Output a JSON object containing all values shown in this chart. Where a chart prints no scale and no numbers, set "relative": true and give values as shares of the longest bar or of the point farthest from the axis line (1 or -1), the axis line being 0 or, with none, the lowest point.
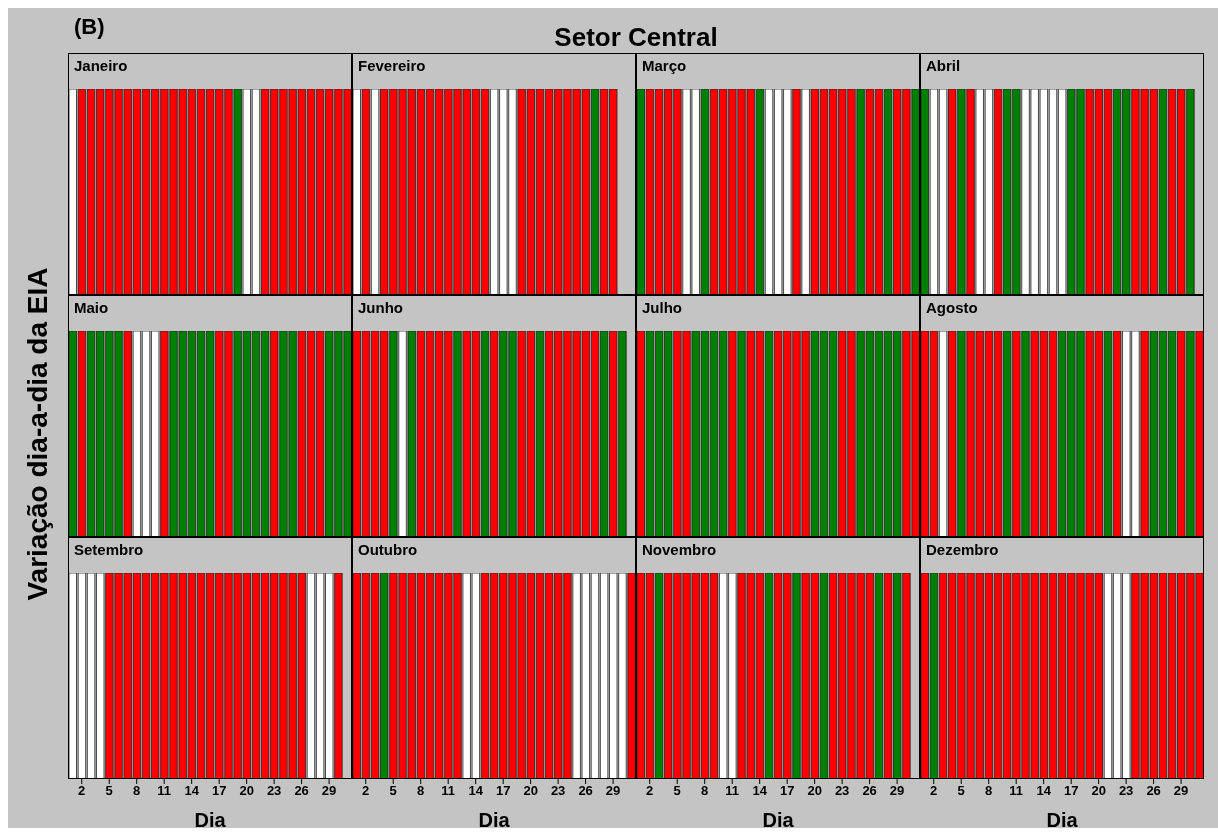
{
  "chart_data": [
    {
      "type": "bar",
      "title": "Janeiro",
      "annotations": [
        "(B)",
        "Setor Central"
      ],
      "relative": true,
      "x": [
        1,
        2,
        3,
        4,
        5,
        6,
        7,
        8,
        9,
        10,
        11,
        12,
        13,
        14,
        15,
        16,
        17,
        18,
        19,
        20,
        21,
        22,
        23,
        24,
        25,
        26,
        27,
        28,
        29,
        30,
        31
      ],
      "values": [
        1,
        1,
        1,
        1,
        1,
        1,
        1,
        1,
        1,
        1,
        1,
        1,
        1,
        1,
        1,
        1,
        1,
        1,
        1,
        1,
        1,
        1,
        1,
        1,
        1,
        1,
        1,
        1,
        1,
        1,
        1
      ],
      "colors": [
        "#ffffff",
        "#ff0000",
        "#ff0000",
        "#ff0000",
        "#ff0000",
        "#ff0000",
        "#ff0000",
        "#ff0000",
        "#ff0000",
        "#ff0000",
        "#ff0000",
        "#ff0000",
        "#ff0000",
        "#ff0000",
        "#ff0000",
        "#ff0000",
        "#ff0000",
        "#ff0000",
        "#008000",
        "#ffffff",
        "#ffffff",
        "#ff0000",
        "#ff0000",
        "#ff0000",
        "#ff0000",
        "#ff0000",
        "#ff0000",
        "#ff0000",
        "#ff0000",
        "#ff0000",
        "#ff0000"
      ],
      "xlim": [
        0.5,
        31.5
      ],
      "tick_labels": false
    },
    {
      "type": "bar",
      "title": "Fevereiro",
      "relative": true,
      "x": [
        1,
        2,
        3,
        4,
        5,
        6,
        7,
        8,
        9,
        10,
        11,
        12,
        13,
        14,
        15,
        16,
        17,
        18,
        19,
        20,
        21,
        22,
        23,
        24,
        25,
        26,
        27,
        28,
        29
      ],
      "values": [
        1,
        1,
        1,
        1,
        1,
        1,
        1,
        1,
        1,
        1,
        1,
        1,
        1,
        1,
        1,
        1,
        1,
        1,
        1,
        1,
        1,
        1,
        1,
        1,
        1,
        1,
        1,
        1,
        1
      ],
      "colors": [
        "#ffffff",
        "#ff0000",
        "#ffffff",
        "#ff0000",
        "#ff0000",
        "#ff0000",
        "#ff0000",
        "#ff0000",
        "#ff0000",
        "#ff0000",
        "#ff0000",
        "#ff0000",
        "#ff0000",
        "#ff0000",
        "#ff0000",
        "#ffffff",
        "#ffffff",
        "#ffffff",
        "#ff0000",
        "#ff0000",
        "#ff0000",
        "#ff0000",
        "#ff0000",
        "#ff0000",
        "#ff0000",
        "#ff0000",
        "#008000",
        "#ff0000",
        "#ff0000"
      ],
      "xlim": [
        0.5,
        31.5
      ],
      "tick_labels": false
    },
    {
      "type": "bar",
      "title": "Março",
      "relative": true,
      "x": [
        1,
        2,
        3,
        4,
        5,
        6,
        7,
        8,
        9,
        10,
        11,
        12,
        13,
        14,
        15,
        16,
        17,
        18,
        19,
        20,
        21,
        22,
        23,
        24,
        25,
        26,
        27,
        28,
        29,
        30,
        31
      ],
      "values": [
        1,
        1,
        1,
        1,
        1,
        1,
        1,
        1,
        1,
        1,
        1,
        1,
        1,
        1,
        1,
        1,
        1,
        1,
        1,
        1,
        1,
        1,
        1,
        1,
        1,
        1,
        1,
        1,
        1,
        1,
        1
      ],
      "colors": [
        "#008000",
        "#ff0000",
        "#ff0000",
        "#ff0000",
        "#ff0000",
        "#ffffff",
        "#ffffff",
        "#008000",
        "#ff0000",
        "#ff0000",
        "#ff0000",
        "#ff0000",
        "#ff0000",
        "#008000",
        "#ffffff",
        "#ffffff",
        "#ffffff",
        "#ff0000",
        "#ffffff",
        "#ff0000",
        "#ff0000",
        "#ff0000",
        "#ff0000",
        "#ff0000",
        "#008000",
        "#ff0000",
        "#ff0000",
        "#008000",
        "#ff0000",
        "#ff0000",
        "#008000"
      ],
      "xlim": [
        0.5,
        31.5
      ],
      "tick_labels": false
    },
    {
      "type": "bar",
      "title": "Abril",
      "relative": true,
      "x": [
        1,
        2,
        3,
        4,
        5,
        6,
        7,
        8,
        9,
        10,
        11,
        12,
        13,
        14,
        15,
        16,
        17,
        18,
        19,
        20,
        21,
        22,
        23,
        24,
        25,
        26,
        27,
        28,
        29,
        30
      ],
      "values": [
        1,
        1,
        1,
        1,
        1,
        1,
        1,
        1,
        1,
        1,
        1,
        1,
        1,
        1,
        1,
        1,
        1,
        1,
        1,
        1,
        1,
        1,
        1,
        1,
        1,
        1,
        1,
        1,
        1,
        1
      ],
      "colors": [
        "#008000",
        "#ffffff",
        "#ffffff",
        "#ff0000",
        "#008000",
        "#ff0000",
        "#ffffff",
        "#ffffff",
        "#ff0000",
        "#008000",
        "#008000",
        "#ffffff",
        "#ffffff",
        "#ffffff",
        "#ffffff",
        "#ffffff",
        "#008000",
        "#008000",
        "#ff0000",
        "#ff0000",
        "#ff0000",
        "#008000",
        "#008000",
        "#ff0000",
        "#ff0000",
        "#ff0000",
        "#008000",
        "#ff0000",
        "#ff0000",
        "#008000"
      ],
      "xlim": [
        0.5,
        31.5
      ],
      "tick_labels": false
    },
    {
      "type": "bar",
      "title": "Maio",
      "ylabel": "Variação dia-a-dia da EIA",
      "relative": true,
      "x": [
        1,
        2,
        3,
        4,
        5,
        6,
        7,
        8,
        9,
        10,
        11,
        12,
        13,
        14,
        15,
        16,
        17,
        18,
        19,
        20,
        21,
        22,
        23,
        24,
        25,
        26,
        27,
        28,
        29,
        30,
        31
      ],
      "values": [
        1,
        1,
        1,
        1,
        1,
        1,
        1,
        1,
        1,
        1,
        1,
        1,
        1,
        1,
        1,
        1,
        1,
        1,
        1,
        1,
        1,
        1,
        1,
        1,
        1,
        1,
        1,
        1,
        1,
        1,
        1
      ],
      "colors": [
        "#008000",
        "#ff0000",
        "#008000",
        "#008000",
        "#008000",
        "#008000",
        "#ff0000",
        "#ffffff",
        "#ffffff",
        "#ffffff",
        "#ff0000",
        "#008000",
        "#008000",
        "#008000",
        "#008000",
        "#008000",
        "#ff0000",
        "#ff0000",
        "#008000",
        "#008000",
        "#008000",
        "#008000",
        "#ff0000",
        "#008000",
        "#008000",
        "#ff0000",
        "#ff0000",
        "#ff0000",
        "#008000",
        "#008000",
        "#008000"
      ],
      "xlim": [
        0.5,
        31.5
      ],
      "tick_labels": false
    },
    {
      "type": "bar",
      "title": "Junho",
      "relative": true,
      "x": [
        1,
        2,
        3,
        4,
        5,
        6,
        7,
        8,
        9,
        10,
        11,
        12,
        13,
        14,
        15,
        16,
        17,
        18,
        19,
        20,
        21,
        22,
        23,
        24,
        25,
        26,
        27,
        28,
        29,
        30
      ],
      "values": [
        1,
        1,
        1,
        1,
        1,
        1,
        1,
        1,
        1,
        1,
        1,
        1,
        1,
        1,
        1,
        1,
        1,
        1,
        1,
        1,
        1,
        1,
        1,
        1,
        1,
        1,
        1,
        1,
        1,
        1
      ],
      "colors": [
        "#ff0000",
        "#ff0000",
        "#ff0000",
        "#ff0000",
        "#008000",
        "#ffffff",
        "#008000",
        "#ff0000",
        "#ff0000",
        "#ff0000",
        "#ff0000",
        "#008000",
        "#ff0000",
        "#ff0000",
        "#008000",
        "#ff0000",
        "#008000",
        "#008000",
        "#ff0000",
        "#ff0000",
        "#008000",
        "#ff0000",
        "#ff0000",
        "#ff0000",
        "#ff0000",
        "#ff0000",
        "#ff0000",
        "#008000",
        "#ff0000",
        "#008000"
      ],
      "xlim": [
        0.5,
        31.5
      ],
      "tick_labels": false
    },
    {
      "type": "bar",
      "title": "Julho",
      "relative": true,
      "x": [
        1,
        2,
        3,
        4,
        5,
        6,
        7,
        8,
        9,
        10,
        11,
        12,
        13,
        14,
        15,
        16,
        17,
        18,
        19,
        20,
        21,
        22,
        23,
        24,
        25,
        26,
        27,
        28,
        29,
        30,
        31
      ],
      "values": [
        1,
        1,
        1,
        1,
        1,
        1,
        1,
        1,
        1,
        1,
        1,
        1,
        1,
        1,
        1,
        1,
        1,
        1,
        1,
        1,
        1,
        1,
        1,
        1,
        1,
        1,
        1,
        1,
        1,
        1,
        1
      ],
      "colors": [
        "#ff0000",
        "#008000",
        "#008000",
        "#008000",
        "#ff0000",
        "#ff0000",
        "#008000",
        "#008000",
        "#008000",
        "#008000",
        "#ff0000",
        "#008000",
        "#ff0000",
        "#ff0000",
        "#008000",
        "#ff0000",
        "#ff0000",
        "#ff0000",
        "#ff0000",
        "#008000",
        "#008000",
        "#008000",
        "#ff0000",
        "#ff0000",
        "#008000",
        "#008000",
        "#008000",
        "#008000",
        "#008000",
        "#ff0000",
        "#ff0000"
      ],
      "xlim": [
        0.5,
        31.5
      ],
      "tick_labels": false
    },
    {
      "type": "bar",
      "title": "Agosto",
      "relative": true,
      "x": [
        1,
        2,
        3,
        4,
        5,
        6,
        7,
        8,
        9,
        10,
        11,
        12,
        13,
        14,
        15,
        16,
        17,
        18,
        19,
        20,
        21,
        22,
        23,
        24,
        25,
        26,
        27,
        28,
        29,
        30,
        31
      ],
      "values": [
        1,
        1,
        1,
        1,
        1,
        1,
        1,
        1,
        1,
        1,
        1,
        1,
        1,
        1,
        1,
        1,
        1,
        1,
        1,
        1,
        1,
        1,
        1,
        1,
        1,
        1,
        1,
        1,
        1,
        1,
        1
      ],
      "colors": [
        "#ff0000",
        "#ff0000",
        "#ffffff",
        "#ff0000",
        "#008000",
        "#ff0000",
        "#ff0000",
        "#ff0000",
        "#ff0000",
        "#008000",
        "#ff0000",
        "#008000",
        "#ff0000",
        "#ff0000",
        "#ff0000",
        "#008000",
        "#008000",
        "#008000",
        "#ff0000",
        "#ff0000",
        "#008000",
        "#ff0000",
        "#ffffff",
        "#ffffff",
        "#ff0000",
        "#008000",
        "#008000",
        "#008000",
        "#ff0000",
        "#008000",
        "#ff0000"
      ],
      "xlim": [
        0.5,
        31.5
      ],
      "tick_labels": false
    },
    {
      "type": "bar",
      "title": "Setembro",
      "xlabel": "Dia",
      "relative": true,
      "x": [
        1,
        2,
        3,
        4,
        5,
        6,
        7,
        8,
        9,
        10,
        11,
        12,
        13,
        14,
        15,
        16,
        17,
        18,
        19,
        20,
        21,
        22,
        23,
        24,
        25,
        26,
        27,
        28,
        29,
        30
      ],
      "values": [
        1,
        1,
        1,
        1,
        1,
        1,
        1,
        1,
        1,
        1,
        1,
        1,
        1,
        1,
        1,
        1,
        1,
        1,
        1,
        1,
        1,
        1,
        1,
        1,
        1,
        1,
        1,
        1,
        1,
        1
      ],
      "colors": [
        "#ffffff",
        "#ffffff",
        "#ffffff",
        "#ffffff",
        "#ff0000",
        "#ff0000",
        "#ff0000",
        "#ff0000",
        "#ff0000",
        "#ff0000",
        "#ff0000",
        "#ff0000",
        "#ff0000",
        "#ff0000",
        "#ff0000",
        "#ff0000",
        "#ff0000",
        "#ff0000",
        "#ff0000",
        "#ff0000",
        "#ff0000",
        "#ff0000",
        "#ff0000",
        "#ff0000",
        "#ff0000",
        "#ff0000",
        "#ffffff",
        "#ffffff",
        "#ffffff",
        "#ff0000"
      ],
      "xlim": [
        0.5,
        31.5
      ],
      "xticks": [
        2,
        5,
        8,
        11,
        14,
        17,
        20,
        23,
        26,
        29
      ],
      "tick_labels": "x"
    },
    {
      "type": "bar",
      "title": "Outubro",
      "xlabel": "Dia",
      "relative": true,
      "x": [
        1,
        2,
        3,
        4,
        5,
        6,
        7,
        8,
        9,
        10,
        11,
        12,
        13,
        14,
        15,
        16,
        17,
        18,
        19,
        20,
        21,
        22,
        23,
        24,
        25,
        26,
        27,
        28,
        29,
        30,
        31
      ],
      "values": [
        1,
        1,
        1,
        1,
        1,
        1,
        1,
        1,
        1,
        1,
        1,
        1,
        1,
        1,
        1,
        1,
        1,
        1,
        1,
        1,
        1,
        1,
        1,
        1,
        1,
        1,
        1,
        1,
        1,
        1,
        1
      ],
      "colors": [
        "#ff0000",
        "#ff0000",
        "#ff0000",
        "#008000",
        "#ff0000",
        "#ff0000",
        "#ff0000",
        "#ff0000",
        "#ff0000",
        "#ff0000",
        "#ff0000",
        "#ff0000",
        "#ffffff",
        "#ffffff",
        "#ff0000",
        "#ff0000",
        "#ff0000",
        "#ff0000",
        "#ff0000",
        "#ff0000",
        "#ff0000",
        "#ff0000",
        "#ff0000",
        "#ff0000",
        "#ffffff",
        "#ffffff",
        "#ffffff",
        "#ffffff",
        "#ffffff",
        "#ffffff",
        "#ff0000"
      ],
      "xlim": [
        0.5,
        31.5
      ],
      "xticks": [
        2,
        5,
        8,
        11,
        14,
        17,
        20,
        23,
        26,
        29
      ],
      "tick_labels": "x"
    },
    {
      "type": "bar",
      "title": "Novembro",
      "xlabel": "Dia",
      "relative": true,
      "x": [
        1,
        2,
        3,
        4,
        5,
        6,
        7,
        8,
        9,
        10,
        11,
        12,
        13,
        14,
        15,
        16,
        17,
        18,
        19,
        20,
        21,
        22,
        23,
        24,
        25,
        26,
        27,
        28,
        29,
        30
      ],
      "values": [
        1,
        1,
        1,
        1,
        1,
        1,
        1,
        1,
        1,
        1,
        1,
        1,
        1,
        1,
        1,
        1,
        1,
        1,
        1,
        1,
        1,
        1,
        1,
        1,
        1,
        1,
        1,
        1,
        1,
        1
      ],
      "colors": [
        "#ff0000",
        "#ff0000",
        "#008000",
        "#ff0000",
        "#ff0000",
        "#ff0000",
        "#ff0000",
        "#ff0000",
        "#ff0000",
        "#ffffff",
        "#ffffff",
        "#ff0000",
        "#ff0000",
        "#ff0000",
        "#008000",
        "#ff0000",
        "#ff0000",
        "#008000",
        "#ff0000",
        "#ff0000",
        "#008000",
        "#ff0000",
        "#ff0000",
        "#ff0000",
        "#ff0000",
        "#ff0000",
        "#008000",
        "#ff0000",
        "#008000",
        "#ff0000"
      ],
      "xlim": [
        0.5,
        31.5
      ],
      "xticks": [
        2,
        5,
        8,
        11,
        14,
        17,
        20,
        23,
        26,
        29
      ],
      "tick_labels": "x"
    },
    {
      "type": "bar",
      "title": "Dezembro",
      "xlabel": "Dia",
      "relative": true,
      "x": [
        1,
        2,
        3,
        4,
        5,
        6,
        7,
        8,
        9,
        10,
        11,
        12,
        13,
        14,
        15,
        16,
        17,
        18,
        19,
        20,
        21,
        22,
        23,
        24,
        25,
        26,
        27,
        28,
        29,
        30,
        31
      ],
      "values": [
        1,
        1,
        1,
        1,
        1,
        1,
        1,
        1,
        1,
        1,
        1,
        1,
        1,
        1,
        1,
        1,
        1,
        1,
        1,
        1,
        1,
        1,
        1,
        1,
        1,
        1,
        1,
        1,
        1,
        1,
        1
      ],
      "colors": [
        "#ff0000",
        "#008000",
        "#ff0000",
        "#ff0000",
        "#ff0000",
        "#ff0000",
        "#ff0000",
        "#ff0000",
        "#ff0000",
        "#ff0000",
        "#ff0000",
        "#ff0000",
        "#ff0000",
        "#ff0000",
        "#ff0000",
        "#ff0000",
        "#ff0000",
        "#ff0000",
        "#ff0000",
        "#ff0000",
        "#ffffff",
        "#ffffff",
        "#ffffff",
        "#ff0000",
        "#ff0000",
        "#ff0000",
        "#ff0000",
        "#ff0000",
        "#ff0000",
        "#ff0000",
        "#ff0000"
      ],
      "xlim": [
        0.5,
        31.5
      ],
      "xticks": [
        2,
        5,
        8,
        11,
        14,
        17,
        20,
        23,
        26,
        29
      ],
      "tick_labels": "x"
    }
  ]
}
